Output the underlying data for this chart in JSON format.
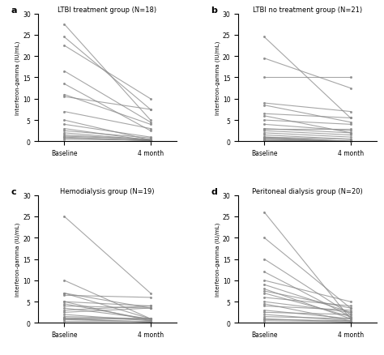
{
  "panels": [
    {
      "label": "a",
      "title": "LTBI treatment group (N=18)",
      "ylim": [
        0,
        30
      ],
      "yticks": [
        0,
        5,
        10,
        15,
        20,
        25,
        30
      ],
      "lines": [
        [
          0.5,
          0.3
        ],
        [
          0.8,
          0.2
        ],
        [
          1.0,
          0.1
        ],
        [
          1.2,
          0.5
        ],
        [
          1.5,
          0.4
        ],
        [
          2.0,
          0.3
        ],
        [
          2.5,
          0.8
        ],
        [
          3.0,
          0.2
        ],
        [
          4.0,
          1.0
        ],
        [
          5.0,
          0.3
        ],
        [
          7.0,
          3.0
        ],
        [
          10.5,
          7.5
        ],
        [
          11.0,
          4.0
        ],
        [
          13.5,
          2.5
        ],
        [
          16.5,
          4.5
        ],
        [
          22.5,
          10.0
        ],
        [
          24.5,
          7.5
        ],
        [
          27.5,
          5.0
        ]
      ]
    },
    {
      "label": "b",
      "title": "LTBI no treatment group (N=21)",
      "ylim": [
        0,
        30
      ],
      "yticks": [
        0,
        5,
        10,
        15,
        20,
        25,
        30
      ],
      "lines": [
        [
          0.2,
          0.0
        ],
        [
          0.3,
          0.0
        ],
        [
          0.5,
          0.0
        ],
        [
          0.7,
          0.0
        ],
        [
          0.8,
          0.0
        ],
        [
          1.0,
          0.0
        ],
        [
          1.0,
          0.5
        ],
        [
          1.5,
          0.5
        ],
        [
          2.0,
          1.0
        ],
        [
          2.5,
          1.5
        ],
        [
          3.0,
          2.0
        ],
        [
          3.0,
          3.0
        ],
        [
          4.0,
          2.5
        ],
        [
          5.0,
          4.0
        ],
        [
          6.0,
          2.0
        ],
        [
          6.5,
          5.5
        ],
        [
          8.5,
          4.5
        ],
        [
          9.0,
          7.0
        ],
        [
          15.0,
          15.0
        ],
        [
          19.5,
          12.5
        ],
        [
          24.5,
          5.5
        ]
      ]
    },
    {
      "label": "c",
      "title": "Hemodialysis group (N=19)",
      "ylim": [
        0,
        30
      ],
      "yticks": [
        0,
        5,
        10,
        15,
        20,
        25,
        30
      ],
      "lines": [
        [
          0.5,
          0.5
        ],
        [
          0.8,
          0.3
        ],
        [
          1.0,
          0.2
        ],
        [
          1.0,
          1.0
        ],
        [
          1.2,
          0.8
        ],
        [
          1.5,
          1.0
        ],
        [
          2.0,
          0.5
        ],
        [
          2.5,
          3.5
        ],
        [
          3.0,
          4.0
        ],
        [
          3.5,
          1.0
        ],
        [
          4.0,
          3.5
        ],
        [
          4.5,
          0.8
        ],
        [
          5.0,
          4.0
        ],
        [
          5.0,
          0.5
        ],
        [
          6.5,
          6.0
        ],
        [
          7.0,
          1.0
        ],
        [
          7.0,
          3.5
        ],
        [
          10.0,
          1.0
        ],
        [
          25.0,
          7.0
        ]
      ]
    },
    {
      "label": "d",
      "title": "Peritoneal dialysis group (N=20)",
      "ylim": [
        0,
        30
      ],
      "yticks": [
        0,
        5,
        10,
        15,
        20,
        25,
        30
      ],
      "lines": [
        [
          0.5,
          0.3
        ],
        [
          0.8,
          0.5
        ],
        [
          1.0,
          0.2
        ],
        [
          1.5,
          1.0
        ],
        [
          2.0,
          0.5
        ],
        [
          2.5,
          2.0
        ],
        [
          3.0,
          1.0
        ],
        [
          4.0,
          3.0
        ],
        [
          4.5,
          0.5
        ],
        [
          5.0,
          2.5
        ],
        [
          6.0,
          4.0
        ],
        [
          7.0,
          1.5
        ],
        [
          7.5,
          3.5
        ],
        [
          8.0,
          1.0
        ],
        [
          9.0,
          2.5
        ],
        [
          10.0,
          5.0
        ],
        [
          12.0,
          1.5
        ],
        [
          15.0,
          2.0
        ],
        [
          20.0,
          3.5
        ],
        [
          26.0,
          1.0
        ]
      ]
    }
  ],
  "xlabel_baseline": "Baseline",
  "xlabel_4month": "4 month",
  "ylabel": "Interferon-gamma (IU/mL)",
  "line_color": "#888888",
  "line_alpha": 0.75,
  "line_width": 0.8,
  "marker_size": 2.5,
  "marker": ".",
  "background_color": "#ffffff",
  "title_fontsize": 6.0,
  "label_fontsize": 8,
  "tick_fontsize": 5.5,
  "ylabel_fontsize": 5.0
}
